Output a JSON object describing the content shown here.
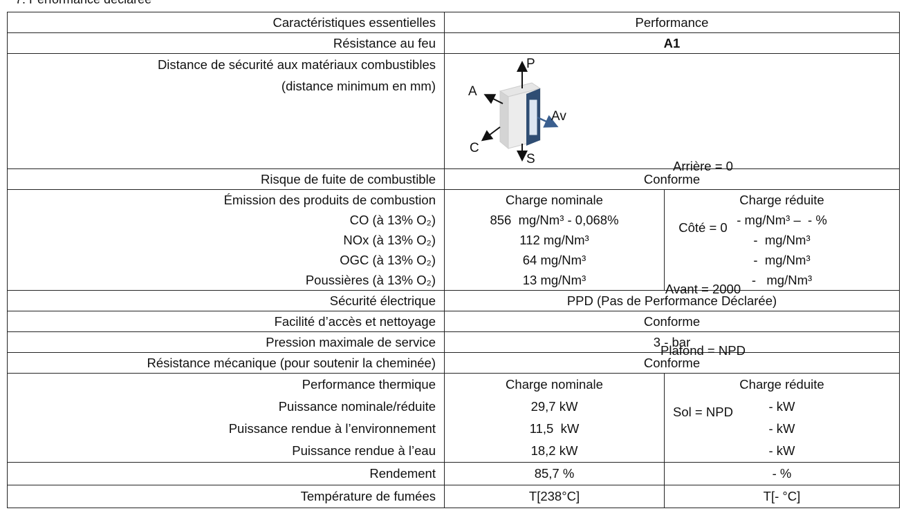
{
  "heading": "7. Performance déclarée",
  "table": {
    "header": {
      "characteristic": "Caractéristiques essentielles",
      "performance": "Performance"
    },
    "fire": {
      "label": "Résistance au feu",
      "value": "A1"
    },
    "distance": {
      "label": [
        "Distance de sécurité aux matériaux combustibles",
        "(distance minimum en mm)"
      ],
      "diagram": {
        "top": "P",
        "back": "A",
        "side": "C",
        "bottom": "S",
        "front": "Av"
      },
      "values": [
        "Arrière = 0",
        "Côté = 0",
        "Avant = 2000",
        "Plafond = NPD",
        "Sol = NPD"
      ]
    },
    "leak": {
      "label": "Risque de fuite de combustible",
      "value": "Conforme"
    },
    "emissions": {
      "labels": [
        "Émission des produits de combustion",
        "CO (à 13% O₂)",
        "NOx (à 13% O₂)",
        "OGC (à 13% O₂)",
        "Poussières (à 13% O₂)"
      ],
      "nominal": [
        "Charge nominale",
        "856  mg/Nm³ - 0,068%",
        "112 mg/Nm³",
        "64 mg/Nm³",
        "13 mg/Nm³"
      ],
      "reduced": [
        "Charge réduite",
        "- mg/Nm³ –  - %",
        "-  mg/Nm³",
        "-  mg/Nm³",
        "-   mg/Nm³"
      ]
    },
    "electrical": {
      "label": "Sécurité électrique",
      "value": "PPD (Pas de Performance Déclarée)"
    },
    "cleaning": {
      "label": "Facilité d’accès et nettoyage",
      "value": "Conforme"
    },
    "pressure": {
      "label": "Pression maximale de service",
      "value": "3 - bar"
    },
    "mechanical": {
      "label": "Résistance mécanique (pour soutenir la cheminée)",
      "value": "Conforme"
    },
    "thermal": {
      "labels": [
        "Performance thermique",
        "Puissance nominale/réduite",
        "Puissance rendue à l’environnement",
        "Puissance rendue à l’eau"
      ],
      "nominal": [
        "Charge nominale",
        "29,7 kW",
        "11,5  kW",
        "18,2 kW"
      ],
      "reduced": [
        "Charge réduite",
        "- kW",
        "- kW",
        "- kW"
      ]
    },
    "efficiency": {
      "label": "Rendement",
      "nominal": "85,7 %",
      "reduced": "- %"
    },
    "flue_temperature": {
      "label": "Température de fumées",
      "nominal": "T[238°C]",
      "reduced": "T[- °C]"
    }
  }
}
